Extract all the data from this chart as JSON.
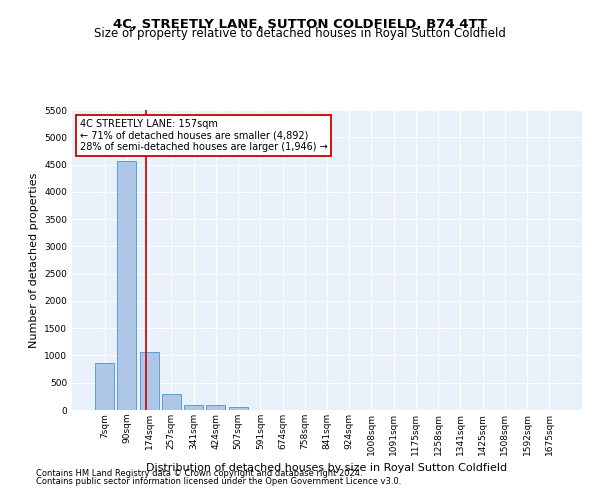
{
  "title": "4C, STREETLY LANE, SUTTON COLDFIELD, B74 4TT",
  "subtitle": "Size of property relative to detached houses in Royal Sutton Coldfield",
  "xlabel": "Distribution of detached houses by size in Royal Sutton Coldfield",
  "ylabel": "Number of detached properties",
  "footnote1": "Contains HM Land Registry data © Crown copyright and database right 2024.",
  "footnote2": "Contains public sector information licensed under the Open Government Licence v3.0.",
  "bar_labels": [
    "7sqm",
    "90sqm",
    "174sqm",
    "257sqm",
    "341sqm",
    "424sqm",
    "507sqm",
    "591sqm",
    "674sqm",
    "758sqm",
    "841sqm",
    "924sqm",
    "1008sqm",
    "1091sqm",
    "1175sqm",
    "1258sqm",
    "1341sqm",
    "1425sqm",
    "1508sqm",
    "1592sqm",
    "1675sqm"
  ],
  "bar_values": [
    870,
    4560,
    1060,
    290,
    95,
    85,
    55,
    0,
    0,
    0,
    0,
    0,
    0,
    0,
    0,
    0,
    0,
    0,
    0,
    0,
    0
  ],
  "bar_color": "#aec6e8",
  "bar_edge_color": "#5a9fd4",
  "ylim": [
    0,
    5500
  ],
  "yticks": [
    0,
    500,
    1000,
    1500,
    2000,
    2500,
    3000,
    3500,
    4000,
    4500,
    5000,
    5500
  ],
  "property_label": "4C STREETLY LANE: 157sqm",
  "annotation_line1": "← 71% of detached houses are smaller (4,892)",
  "annotation_line2": "28% of semi-detached houses are larger (1,946) →",
  "vline_x_index": 1.85,
  "annotation_box_color": "#ffffff",
  "annotation_box_edge": "#cc0000",
  "vline_color": "#cc0000",
  "bg_color": "#e8f0fa",
  "grid_color": "#ffffff",
  "title_fontsize": 9.5,
  "subtitle_fontsize": 8.5,
  "ylabel_fontsize": 8,
  "xlabel_fontsize": 8,
  "footnote_fontsize": 6,
  "tick_fontsize": 6.5
}
